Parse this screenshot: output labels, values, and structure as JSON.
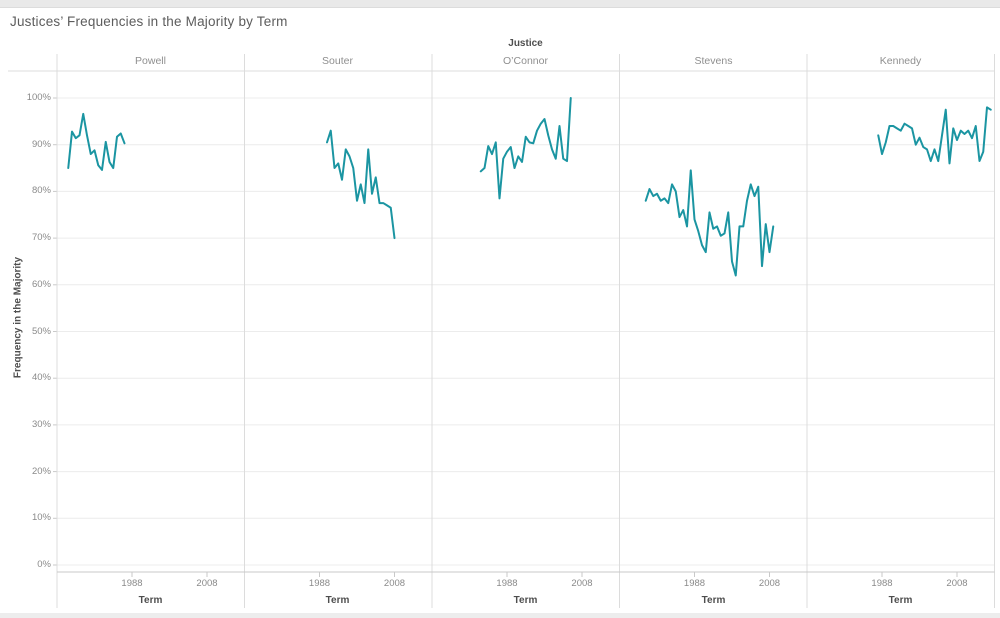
{
  "colors": {
    "line": "#1b95a2",
    "grid": "#ececec",
    "divider": "#dcdcdc",
    "axis": "#c9c9c9",
    "tick_text": "#8a8a8a",
    "label_text": "#4e4e4e",
    "title_text": "#5c5c5c",
    "top_strip": "#e9e9e9"
  },
  "chart_data": {
    "type": "line",
    "title": "Justices’ Frequencies in the Majority by Term",
    "facet_field": "Justice",
    "xlabel": "Term",
    "ylabel": "Frequency in the Majority",
    "x_ticks": [
      1988,
      2008
    ],
    "y_ticks": [
      0,
      10,
      20,
      30,
      40,
      50,
      60,
      70,
      80,
      90,
      100
    ],
    "y_tick_suffix": "%",
    "ylim": [
      0,
      100
    ],
    "x_domain_per_panel": [
      1968,
      2018
    ],
    "grid": true,
    "legend": "none",
    "panels": [
      {
        "name": "Powell",
        "start_year": 1971,
        "values": [
          85,
          92.8,
          91.4,
          92,
          96.6,
          92,
          88,
          88.8,
          85.6,
          84.6,
          90.6,
          86.3,
          85,
          91.7,
          92.4,
          90.3
        ]
      },
      {
        "name": "Souter",
        "start_year": 1990,
        "values": [
          90.5,
          93,
          85,
          86,
          82.5,
          89,
          87.5,
          85,
          78,
          81.5,
          77.5,
          89,
          79.5,
          83,
          77.5,
          77.5,
          77,
          76.5,
          70
        ]
      },
      {
        "name": "O’Connor",
        "start_year": 1981,
        "values": [
          84.3,
          85,
          89.7,
          88,
          90.5,
          78.5,
          87,
          88.5,
          89.5,
          85,
          87.5,
          86.3,
          91.7,
          90.5,
          90.3,
          93,
          94.5,
          95.5,
          92,
          89,
          87,
          94,
          87,
          86.5,
          100
        ]
      },
      {
        "name": "Stevens",
        "start_year": 1975,
        "values": [
          78,
          80.5,
          79,
          79.5,
          78,
          78.5,
          77.5,
          81.5,
          80,
          74.5,
          76,
          72.5,
          84.5,
          74,
          71.5,
          68.5,
          67,
          75.5,
          72,
          72.5,
          70.5,
          71,
          75.5,
          65,
          62,
          72.5,
          72.5,
          78,
          81.5,
          79,
          81,
          64,
          73,
          67,
          72.5
        ]
      },
      {
        "name": "Kennedy",
        "start_year": 1987,
        "values": [
          92,
          88,
          90.5,
          94,
          94,
          93.5,
          93,
          94.5,
          94,
          93.5,
          90,
          91.5,
          89.5,
          89,
          86.5,
          89,
          86.5,
          92,
          97.5,
          86,
          93.5,
          91,
          93,
          92.3,
          93,
          91.4,
          94,
          86.5,
          88.5,
          98,
          97.5
        ]
      }
    ]
  }
}
